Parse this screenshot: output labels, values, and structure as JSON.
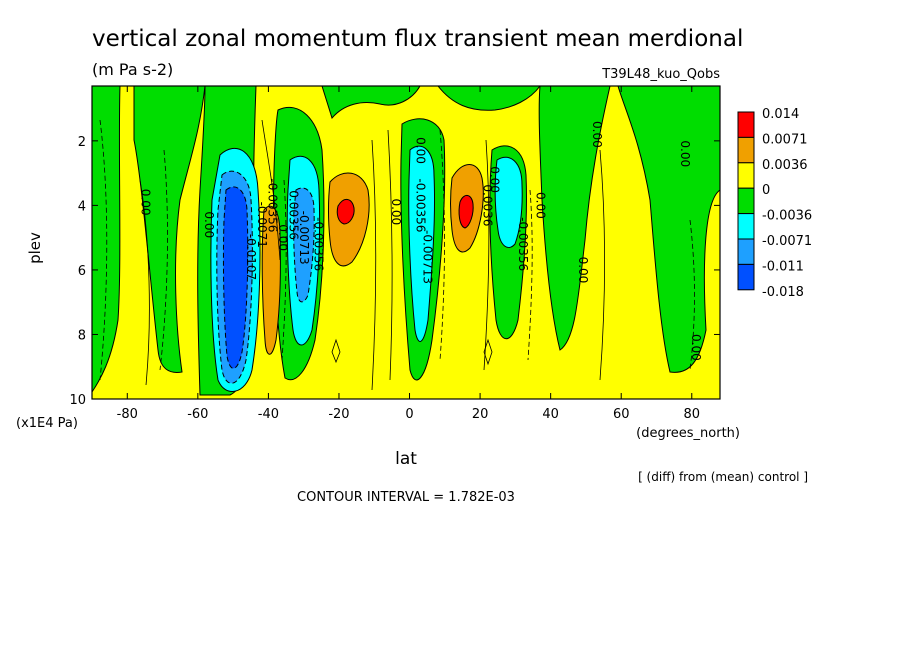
{
  "chart_data": {
    "type": "heatmap",
    "title": "vertical zonal momentum flux transient mean merdional",
    "subtitle": "(m Pa s-2)",
    "run_label": "T39L48_kuo_Qobs",
    "xlabel": "lat",
    "x_units": "(degrees_north)",
    "ylabel": "plev",
    "y_units": "(x1E4 Pa)",
    "xlim": [
      -90,
      88
    ],
    "ylim": [
      10,
      0.3
    ],
    "x_ticks": [
      -80,
      -60,
      -40,
      -20,
      0,
      20,
      40,
      60,
      80
    ],
    "y_ticks": [
      2,
      4,
      6,
      8,
      10
    ],
    "note": "[ (diff) from (mean) control ]",
    "contour_interval": "CONTOUR INTERVAL = 1.782E-03",
    "legend": [
      {
        "label": "0.014",
        "color": "#ff0000"
      },
      {
        "label": "0.0071",
        "color": "#f0a000"
      },
      {
        "label": "0.0036",
        "color": "#ffff00"
      },
      {
        "label": "0",
        "color": "#00dd00"
      },
      {
        "label": "-0.0036",
        "color": "#00ffff"
      },
      {
        "label": "-0.0071",
        "color": "#1ea0ff"
      },
      {
        "label": "-0.011",
        "color": "#0050ff"
      },
      {
        "label": "-0.018",
        "color": ""
      }
    ],
    "contour_labels": [
      {
        "text": "0.00",
        "lat": -76,
        "plev": 3.9
      },
      {
        "text": "0.00",
        "lat": -58,
        "plev": 4.6
      },
      {
        "text": "-0.0107",
        "lat": -46,
        "plev": 5.6
      },
      {
        "text": "-0.0071",
        "lat": -43,
        "plev": 4.6
      },
      {
        "text": "-0.00356",
        "lat": -40,
        "plev": 4.0
      },
      {
        "text": "0.00",
        "lat": -37,
        "plev": 5.0
      },
      {
        "text": "0.00356",
        "lat": -34,
        "plev": 4.3
      },
      {
        "text": "-0.00713",
        "lat": -31,
        "plev": 5.0
      },
      {
        "text": "-0.00356",
        "lat": -27,
        "plev": 5.2
      },
      {
        "text": "0.00",
        "lat": -5,
        "plev": 4.2
      },
      {
        "text": "0.00",
        "lat": 2,
        "plev": 2.3
      },
      {
        "text": "-0.00356",
        "lat": 2,
        "plev": 4.0
      },
      {
        "text": "-0.00713",
        "lat": 4,
        "plev": 5.6
      },
      {
        "text": "0.0036",
        "lat": 21,
        "plev": 4.0
      },
      {
        "text": "0.00",
        "lat": 23,
        "plev": 3.2
      },
      {
        "text": "-0.00356",
        "lat": 31,
        "plev": 5.2
      },
      {
        "text": "0.00",
        "lat": 36,
        "plev": 4.0
      },
      {
        "text": "0.00",
        "lat": 48,
        "plev": 6.0
      },
      {
        "text": "0.00",
        "lat": 52,
        "plev": 1.8
      },
      {
        "text": "0.00",
        "lat": 77,
        "plev": 2.4
      },
      {
        "text": "0.00",
        "lat": 80,
        "plev": 8.4
      }
    ]
  }
}
